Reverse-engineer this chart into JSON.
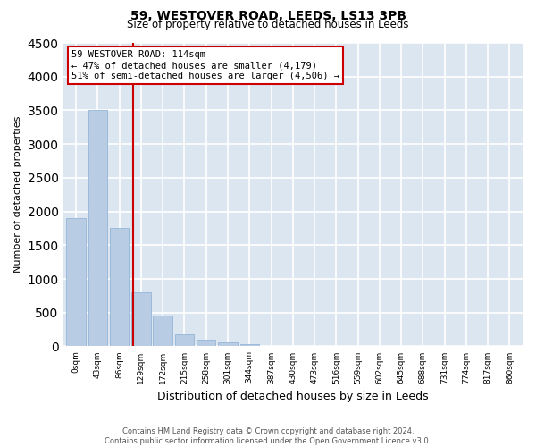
{
  "title": "59, WESTOVER ROAD, LEEDS, LS13 3PB",
  "subtitle": "Size of property relative to detached houses in Leeds",
  "xlabel": "Distribution of detached houses by size in Leeds",
  "ylabel": "Number of detached properties",
  "bar_color": "#b8cce4",
  "bar_edge_color": "#8aaed4",
  "background_color": "#dce6f0",
  "grid_color": "#ffffff",
  "bin_labels": [
    "0sqm",
    "43sqm",
    "86sqm",
    "129sqm",
    "172sqm",
    "215sqm",
    "258sqm",
    "301sqm",
    "344sqm",
    "387sqm",
    "430sqm",
    "473sqm",
    "516sqm",
    "559sqm",
    "602sqm",
    "645sqm",
    "688sqm",
    "731sqm",
    "774sqm",
    "817sqm",
    "860sqm"
  ],
  "bar_values": [
    1900,
    3500,
    1750,
    800,
    450,
    175,
    100,
    60,
    30,
    10,
    5,
    2,
    0,
    0,
    0,
    0,
    0,
    0,
    0,
    0,
    0
  ],
  "red_line_color": "#cc0000",
  "property_label": "59 WESTOVER ROAD: 114sqm",
  "annotation_line1": "← 47% of detached houses are smaller (4,179)",
  "annotation_line2": "51% of semi-detached houses are larger (4,506) →",
  "ylim": [
    0,
    4500
  ],
  "yticks": [
    0,
    500,
    1000,
    1500,
    2000,
    2500,
    3000,
    3500,
    4000,
    4500
  ],
  "property_size": 114,
  "bin_size": 43,
  "footer_line1": "Contains HM Land Registry data © Crown copyright and database right 2024.",
  "footer_line2": "Contains public sector information licensed under the Open Government Licence v3.0."
}
